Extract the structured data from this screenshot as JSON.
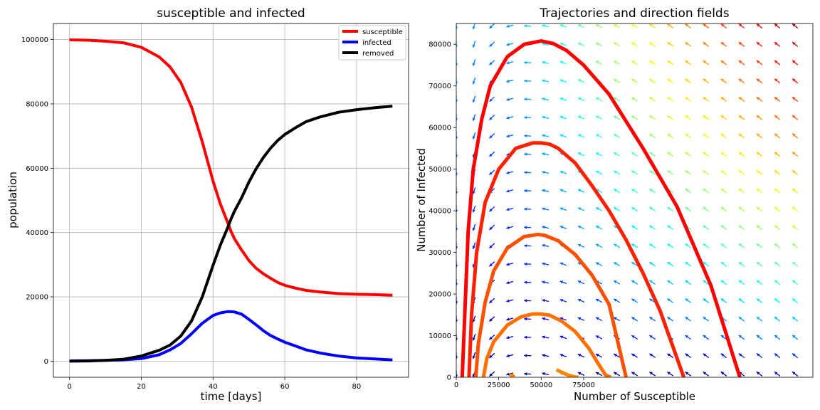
{
  "colors": {
    "susceptible": "#ff0000",
    "infected": "#0000ff",
    "removed": "#000000",
    "grid": "#b0b0b0"
  },
  "chart_data": [
    {
      "type": "line",
      "title": "susceptible and infected",
      "xlabel": "time [days]",
      "ylabel": "population",
      "xlim": [
        -4.5,
        94.5
      ],
      "ylim": [
        -5000,
        105000
      ],
      "xticks": [
        0,
        20,
        40,
        60,
        80
      ],
      "yticks": [
        0,
        20000,
        40000,
        60000,
        80000,
        100000
      ],
      "grid": true,
      "legend_position": "top-right",
      "x": [
        0,
        5,
        10,
        15,
        20,
        25,
        28,
        31,
        34,
        37,
        40,
        42,
        44,
        45,
        46,
        48,
        50,
        52,
        54,
        56,
        58,
        60,
        63,
        66,
        70,
        75,
        80,
        85,
        90
      ],
      "series": [
        {
          "name": "susceptible",
          "color": "#ff0000",
          "values": [
            99900,
            99800,
            99500,
            99000,
            97600,
            94600,
            91500,
            86700,
            79000,
            68200,
            56000,
            49000,
            43300,
            40400,
            38000,
            34500,
            31300,
            28900,
            27200,
            25800,
            24500,
            23600,
            22700,
            22000,
            21500,
            21000,
            20800,
            20700,
            20500
          ]
        },
        {
          "name": "infected",
          "color": "#0000ff",
          "values": [
            100,
            150,
            250,
            400,
            800,
            2000,
            3500,
            5500,
            8500,
            11800,
            14200,
            15000,
            15400,
            15400,
            15300,
            14600,
            13000,
            11300,
            9500,
            8000,
            6900,
            5900,
            4700,
            3500,
            2500,
            1600,
            1000,
            700,
            400
          ]
        },
        {
          "name": "removed",
          "color": "#000000",
          "values": [
            0,
            50,
            250,
            600,
            1600,
            3400,
            5000,
            7800,
            12500,
            20000,
            29800,
            36000,
            41300,
            44200,
            46700,
            50900,
            55700,
            59800,
            63300,
            66200,
            68600,
            70500,
            72600,
            74500,
            76000,
            77400,
            78200,
            78800,
            79300
          ]
        }
      ]
    },
    {
      "type": "line",
      "title": "Trajectories and direction fields",
      "xlabel": "Number of Susceptible",
      "ylabel": "Number of Infected",
      "xlim": [
        0,
        210000
      ],
      "ylim": [
        0,
        85000
      ],
      "xticks": [
        0,
        25000,
        50000,
        75000
      ],
      "yticks": [
        0,
        10000,
        20000,
        30000,
        40000,
        50000,
        60000,
        70000,
        80000
      ],
      "grid": false,
      "quiver": true,
      "series": [
        {
          "color": "#ff0000",
          "x": [
            3500,
            4000,
            5000,
            7000,
            10000,
            15000,
            20000,
            30000,
            40000,
            50000,
            57000,
            65000,
            75000,
            90000,
            110000,
            130000,
            150000,
            167000
          ],
          "y": [
            0,
            5000,
            15000,
            35000,
            50000,
            62000,
            70000,
            77000,
            80000,
            80800,
            80200,
            78500,
            75000,
            68000,
            55000,
            41000,
            22000,
            0
          ]
        },
        {
          "color": "#ff2000",
          "x": [
            7500,
            8000,
            9000,
            12000,
            17000,
            25000,
            35000,
            45000,
            50000,
            55000,
            60000,
            70000,
            80000,
            90000,
            100000,
            110000,
            120000,
            134000
          ],
          "y": [
            0,
            5000,
            15000,
            30000,
            42000,
            50000,
            55000,
            56300,
            56300,
            56000,
            55000,
            51500,
            46000,
            40000,
            33000,
            25000,
            16000,
            0
          ]
        },
        {
          "color": "#ff5000",
          "x": [
            11500,
            13000,
            17000,
            22000,
            30000,
            40000,
            48000,
            52000,
            60000,
            70000,
            80000,
            90000,
            100000
          ],
          "y": [
            0,
            8000,
            18000,
            25500,
            31000,
            33800,
            34300,
            34100,
            32800,
            29500,
            24500,
            17500,
            0
          ]
        },
        {
          "color": "#ff7000",
          "x": [
            16000,
            18000,
            22000,
            30000,
            38000,
            45000,
            50000,
            55000,
            62000,
            70000,
            78000,
            84000,
            88000,
            91000
          ],
          "y": [
            0,
            4500,
            8500,
            12500,
            14500,
            15200,
            15200,
            14900,
            13500,
            11000,
            7000,
            3000,
            500,
            0
          ]
        },
        {
          "color": "#ff8800",
          "x": [
            32000,
            33000,
            34000
          ],
          "y": [
            0,
            500,
            0
          ]
        },
        {
          "color": "#ff8800",
          "x": [
            59000,
            62000,
            66000,
            70000,
            72000
          ],
          "y": [
            1800,
            1200,
            500,
            50,
            0
          ]
        }
      ]
    }
  ]
}
